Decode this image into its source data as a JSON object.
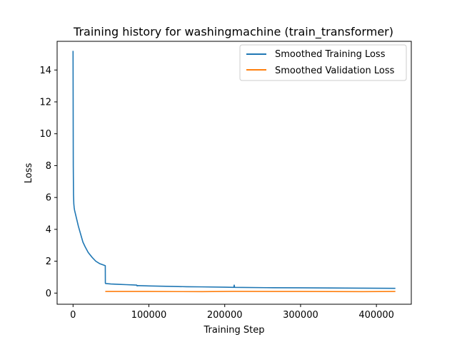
{
  "chart_data": {
    "type": "line",
    "title": "Training history for washingmachine (train_transformer)",
    "xlabel": "Training Step",
    "ylabel": "Loss",
    "xlim": [
      -21000,
      446000
    ],
    "ylim": [
      -0.7,
      15.8
    ],
    "xticks": [
      0,
      100000,
      200000,
      300000,
      400000
    ],
    "xtick_labels": [
      "0",
      "100000",
      "200000",
      "300000",
      "400000"
    ],
    "yticks": [
      0,
      2,
      4,
      6,
      8,
      10,
      12,
      14
    ],
    "ytick_labels": [
      "0",
      "2",
      "4",
      "6",
      "8",
      "10",
      "12",
      "14"
    ],
    "grid": false,
    "legend_position": "upper right",
    "series": [
      {
        "name": "Smoothed Training Loss",
        "color": "#1f77b4",
        "x": [
          0,
          300,
          600,
          1000,
          1500,
          2000,
          3000,
          5000,
          7000,
          10000,
          13000,
          16000,
          20000,
          25000,
          30000,
          35000,
          39000,
          42500,
          42600,
          43000,
          50000,
          60000,
          70000,
          80000,
          84000,
          84500,
          85000,
          100000,
          128000,
          150000,
          170000,
          200000,
          212000,
          212500,
          213000,
          255000,
          300000,
          340000,
          380000,
          425000
        ],
        "y": [
          15.2,
          8.0,
          6.2,
          5.6,
          5.35,
          5.2,
          5.0,
          4.6,
          4.2,
          3.7,
          3.2,
          2.9,
          2.55,
          2.25,
          2.0,
          1.85,
          1.78,
          1.72,
          0.62,
          0.6,
          0.57,
          0.55,
          0.53,
          0.51,
          0.5,
          0.45,
          0.47,
          0.45,
          0.42,
          0.4,
          0.39,
          0.37,
          0.36,
          0.5,
          0.36,
          0.34,
          0.33,
          0.32,
          0.31,
          0.3
        ]
      },
      {
        "name": "Smoothed Validation Loss",
        "color": "#ff7f0e",
        "x": [
          42500,
          100000,
          170000,
          212000,
          300000,
          380000,
          425000
        ],
        "y": [
          0.1,
          0.1,
          0.09,
          0.11,
          0.1,
          0.09,
          0.1
        ]
      }
    ]
  }
}
